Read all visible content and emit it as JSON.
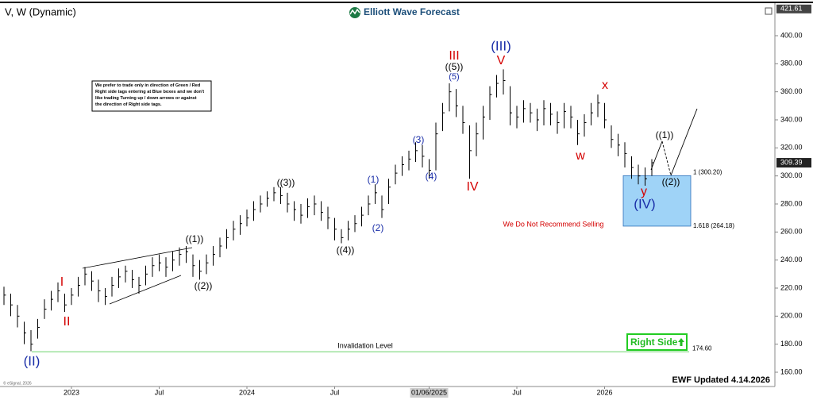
{
  "header": {
    "title": "V, W (Dynamic)",
    "logo": "Elliott Wave Forecast",
    "copyright": "© eSignal, 2026"
  },
  "note": {
    "lines": [
      "We prefer to trade only in direction of Green / Red",
      "Right side tags entering at Blue boxes and we don't",
      "like trading Turning up / down arrows or against",
      "the direction of Right side tags."
    ]
  },
  "chart_data": {
    "type": "ohlc",
    "categories": [
      null,
      null,
      null,
      null,
      null,
      null,
      null,
      null,
      null,
      null,
      "2023",
      null,
      null,
      null,
      null,
      null,
      null,
      null,
      null,
      null,
      null,
      null,
      null,
      "Jul",
      null,
      null,
      null,
      null,
      null,
      null,
      null,
      null,
      null,
      null,
      null,
      null,
      "2024",
      null,
      null,
      null,
      null,
      null,
      null,
      null,
      null,
      null,
      null,
      null,
      null,
      "Jul",
      null,
      null,
      null,
      null,
      null,
      null,
      null,
      null,
      null,
      null,
      null,
      null,
      null,
      "01/06/2025",
      null,
      null,
      null,
      null,
      null,
      null,
      null,
      null,
      null,
      null,
      null,
      null,
      "Jul",
      null,
      null,
      null,
      null,
      null,
      null,
      null,
      null,
      null,
      null,
      null,
      null,
      "2026",
      null,
      null,
      null,
      null,
      null,
      null,
      null
    ],
    "high": [
      221,
      216,
      208,
      196,
      190,
      198,
      212,
      218,
      224,
      216,
      220,
      228,
      235,
      232,
      226,
      220,
      228,
      234,
      236,
      233,
      228,
      236,
      242,
      244,
      242,
      246,
      249,
      250,
      244,
      240,
      244,
      250,
      256,
      262,
      268,
      272,
      276,
      282,
      286,
      289,
      292,
      292,
      288,
      282,
      280,
      284,
      286,
      282,
      278,
      270,
      262,
      268,
      272,
      278,
      286,
      294,
      286,
      298,
      308,
      314,
      318,
      324,
      322,
      312,
      338,
      352,
      366,
      362,
      350,
      336,
      338,
      350,
      364,
      372,
      376,
      364,
      350,
      354,
      352,
      348,
      354,
      352,
      346,
      352,
      350,
      340,
      344,
      352,
      358,
      352,
      336,
      330,
      324,
      314,
      308,
      306,
      312
    ],
    "low": [
      208,
      200,
      192,
      180,
      175,
      184,
      198,
      204,
      210,
      203,
      208,
      214,
      222,
      218,
      210,
      208,
      214,
      220,
      224,
      220,
      216,
      222,
      228,
      232,
      228,
      232,
      236,
      238,
      228,
      226,
      230,
      236,
      242,
      248,
      254,
      258,
      264,
      268,
      274,
      278,
      282,
      280,
      274,
      268,
      266,
      270,
      272,
      268,
      262,
      254,
      252,
      254,
      260,
      264,
      272,
      280,
      270,
      280,
      294,
      300,
      304,
      310,
      306,
      298,
      304,
      332,
      346,
      342,
      330,
      298,
      314,
      326,
      340,
      356,
      358,
      336,
      334,
      338,
      338,
      332,
      336,
      336,
      330,
      334,
      334,
      322,
      328,
      336,
      342,
      334,
      320,
      314,
      306,
      298,
      294,
      293,
      300
    ],
    "close": [
      215,
      208,
      200,
      188,
      180,
      192,
      205,
      212,
      218,
      208,
      215,
      222,
      230,
      225,
      218,
      214,
      222,
      228,
      232,
      226,
      222,
      230,
      236,
      238,
      235,
      240,
      244,
      246,
      236,
      232,
      238,
      244,
      250,
      256,
      262,
      266,
      270,
      276,
      280,
      284,
      288,
      286,
      280,
      276,
      272,
      278,
      280,
      274,
      270,
      262,
      256,
      262,
      266,
      272,
      280,
      288,
      276,
      292,
      302,
      308,
      312,
      318,
      314,
      304,
      330,
      345,
      360,
      350,
      338,
      318,
      330,
      342,
      358,
      366,
      368,
      345,
      342,
      348,
      345,
      340,
      348,
      344,
      338,
      346,
      342,
      330,
      338,
      345,
      352,
      340,
      326,
      322,
      316,
      306,
      300,
      298,
      309.39
    ],
    "color": "#000000",
    "ylim": [
      150,
      421.61
    ],
    "yticks": [
      {
        "value": 160,
        "label": "160.00"
      },
      {
        "value": 180,
        "label": "180.00"
      },
      {
        "value": 200,
        "label": "200.00"
      },
      {
        "value": 220,
        "label": "220.00"
      },
      {
        "value": 240,
        "label": "240.00"
      },
      {
        "value": 260,
        "label": "260.00"
      },
      {
        "value": 280,
        "label": "280.00"
      },
      {
        "value": 300,
        "label": "300.00"
      },
      {
        "value": 320,
        "label": "320.00"
      },
      {
        "value": 340,
        "label": "340.00"
      },
      {
        "value": 360,
        "label": "360.00"
      },
      {
        "value": 380,
        "label": "380.00"
      },
      {
        "value": 400,
        "label": "400.00"
      }
    ],
    "fib_levels": [
      {
        "value": 300.2,
        "label": "1 (300.20)"
      },
      {
        "value": 264.18,
        "label": "1.618 (264.18)"
      }
    ],
    "invalidation": {
      "value": 174.6,
      "label": "174.60",
      "text": "Invalidation Level"
    },
    "annotations": [
      "(II)",
      "I",
      "II",
      "((1))",
      "((2))",
      "((3))",
      "((4))",
      "(1)",
      "(2)",
      "(3)",
      "(4)",
      "((5))",
      "(5)",
      "III",
      "(III)",
      "V",
      "IV",
      "w",
      "x",
      "y",
      "(IV)",
      "((1))",
      "((2))"
    ],
    "warning": "We Do Not Recommend Selling",
    "tag": "Right Side",
    "updated": "EWF Updated 4.14.2026"
  }
}
